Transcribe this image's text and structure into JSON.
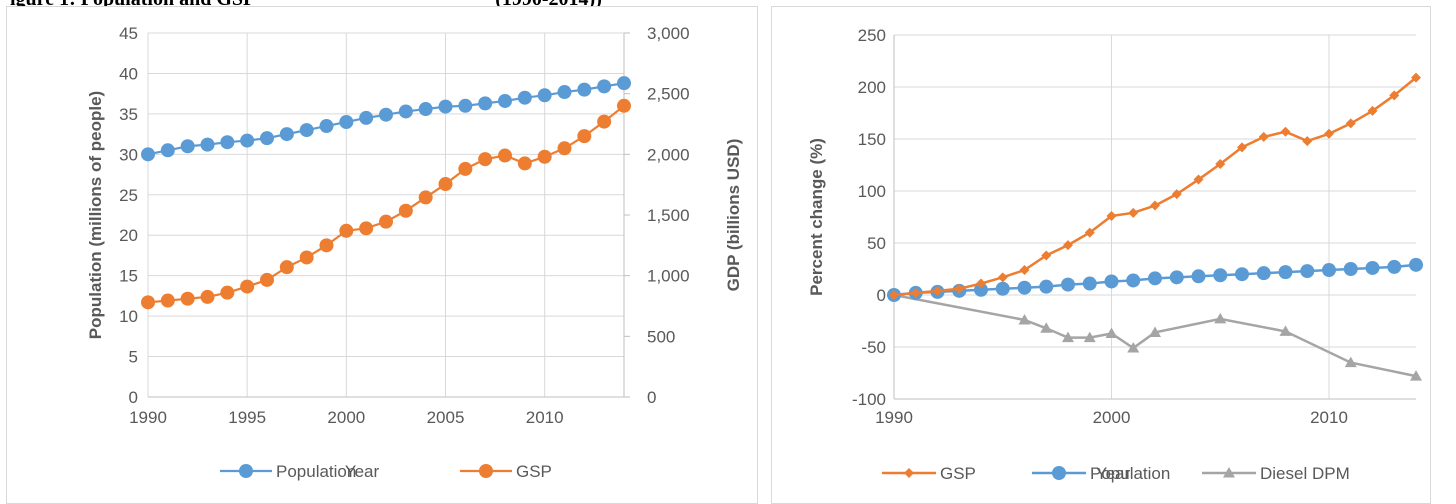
{
  "figure_title": {
    "left": "igure 1: Population and GSP",
    "right": "(1990-2014))"
  },
  "colors": {
    "population": "#5B9BD5",
    "gsp": "#ED7D31",
    "diesel": "#A5A5A5",
    "grid": "#D9D9D9",
    "axis": "#BFBFBF",
    "text": "#595959"
  },
  "chart_data": [
    {
      "type": "line",
      "xlabel": "Year",
      "ylabel": "Population (millions of people)",
      "y2label": "GDP (billions USD)",
      "xlim": [
        1990,
        2014
      ],
      "ylim": [
        0,
        45
      ],
      "y2lim": [
        0,
        3000
      ],
      "x_ticks": [
        "1990",
        "1995",
        "2000",
        "2005",
        "2010"
      ],
      "y_ticks": [
        "0",
        "5",
        "10",
        "15",
        "20",
        "25",
        "30",
        "35",
        "40",
        "45"
      ],
      "y2_ticks": [
        "0",
        "500",
        "1,000",
        "1,500",
        "2,000",
        "2,500",
        "3,000"
      ],
      "grid": true,
      "legend": "bottom",
      "x": [
        1990,
        1991,
        1992,
        1993,
        1994,
        1995,
        1996,
        1997,
        1998,
        1999,
        2000,
        2001,
        2002,
        2003,
        2004,
        2005,
        2006,
        2007,
        2008,
        2009,
        2010,
        2011,
        2012,
        2013,
        2014
      ],
      "series": [
        {
          "name": "Population",
          "axis": "left",
          "marker": "circle",
          "values": [
            30.0,
            30.5,
            31.0,
            31.2,
            31.5,
            31.7,
            32.0,
            32.5,
            33.0,
            33.5,
            34.0,
            34.5,
            34.9,
            35.3,
            35.6,
            35.9,
            36.0,
            36.3,
            36.6,
            37.0,
            37.3,
            37.7,
            38.0,
            38.4,
            38.8
          ]
        },
        {
          "name": "GSP",
          "axis": "right",
          "marker": "circle",
          "values": [
            780,
            795,
            810,
            825,
            860,
            910,
            965,
            1070,
            1150,
            1250,
            1370,
            1390,
            1445,
            1535,
            1645,
            1755,
            1880,
            1960,
            1990,
            1925,
            1980,
            2050,
            2150,
            2270,
            2400
          ]
        }
      ]
    },
    {
      "type": "line",
      "xlabel": "Year",
      "ylabel": "Percent change (%)",
      "xlim": [
        1990,
        2014
      ],
      "ylim": [
        -100,
        250
      ],
      "x_ticks": [
        "1990",
        "2000",
        "2010"
      ],
      "y_ticks": [
        "-100",
        "-50",
        "0",
        "50",
        "100",
        "150",
        "200",
        "250"
      ],
      "grid": true,
      "legend": "bottom",
      "series": [
        {
          "name": "GSP",
          "marker": "diamond",
          "x": [
            1990,
            1991,
            1992,
            1993,
            1994,
            1995,
            1996,
            1997,
            1998,
            1999,
            2000,
            2001,
            2002,
            2003,
            2004,
            2005,
            2006,
            2007,
            2008,
            2009,
            2010,
            2011,
            2012,
            2013,
            2014
          ],
          "values": [
            0,
            2,
            4,
            6,
            11,
            17,
            24,
            38,
            48,
            60,
            76,
            79,
            86,
            97,
            111,
            126,
            142,
            152,
            157,
            148,
            155,
            165,
            177,
            192,
            209
          ]
        },
        {
          "name": "Population",
          "marker": "circle",
          "x": [
            1990,
            1991,
            1992,
            1993,
            1994,
            1995,
            1996,
            1997,
            1998,
            1999,
            2000,
            2001,
            2002,
            2003,
            2004,
            2005,
            2006,
            2007,
            2008,
            2009,
            2010,
            2011,
            2012,
            2013,
            2014
          ],
          "values": [
            0,
            2,
            3,
            4,
            5,
            6,
            7,
            8,
            10,
            11,
            13,
            14,
            16,
            17,
            18,
            19,
            20,
            21,
            22,
            23,
            24,
            25,
            26,
            27,
            29
          ]
        },
        {
          "name": "Diesel DPM",
          "marker": "triangle",
          "x": [
            1990,
            1996,
            1997,
            1998,
            1999,
            2000,
            2001,
            2002,
            2005,
            2008,
            2011,
            2014
          ],
          "values": [
            0,
            -24,
            -32,
            -41,
            -41,
            -37,
            -51,
            -36,
            -23,
            -35,
            -65,
            -78
          ]
        }
      ]
    }
  ]
}
